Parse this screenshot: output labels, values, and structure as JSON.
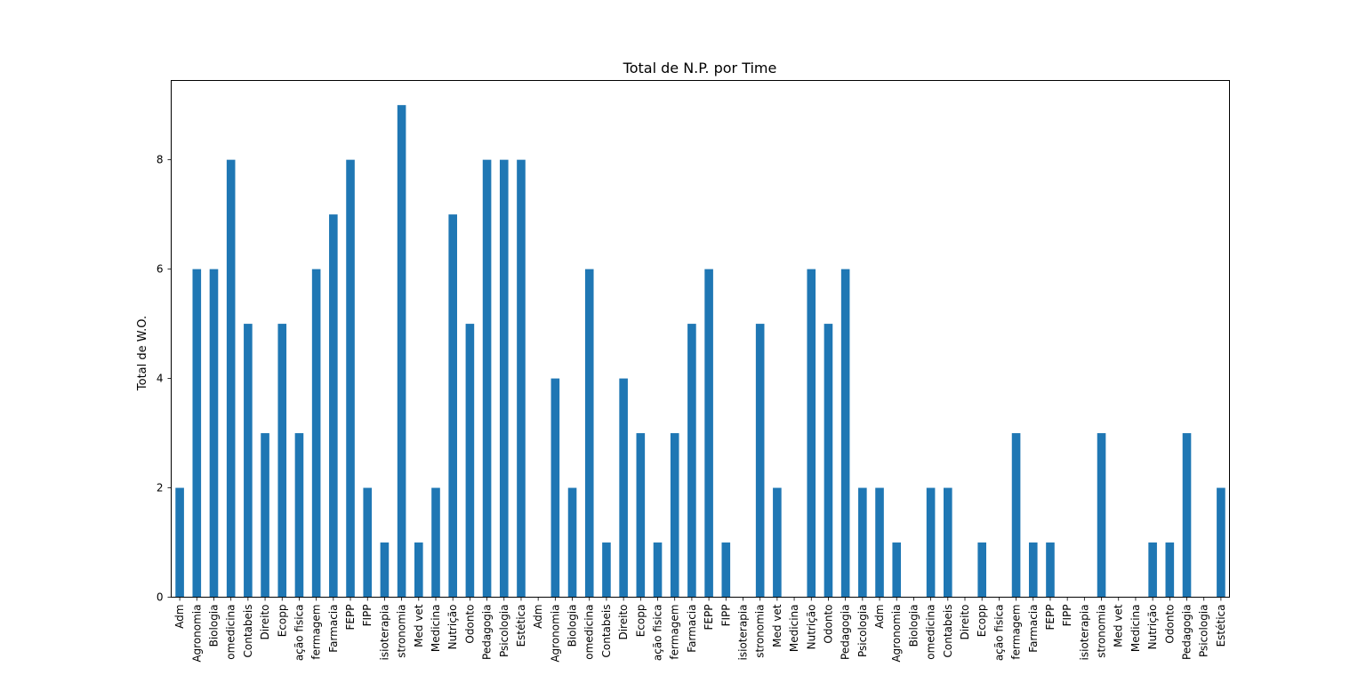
{
  "chart_data": {
    "type": "bar",
    "title": "Total de N.P. por Time",
    "xlabel": "",
    "ylabel": "Total de W.O.",
    "ylim": [
      0,
      9.45
    ],
    "yticks": [
      0,
      2,
      4,
      6,
      8
    ],
    "grid": false,
    "legend": "none",
    "bar_color": "#1f77b4",
    "categories": [
      "Adm",
      "Agronomia",
      "Biologia",
      "omedicina",
      "Contabeis",
      "Direito",
      "Ecopp",
      "ação fisica",
      "fermagem",
      "Farmacia",
      "FEPP",
      "FIPP",
      "isioterapia",
      "stronomia",
      "Med vet",
      "Medicina",
      "Nutrição",
      "Odonto",
      "Pedagogia",
      "Psicologia",
      "Estética",
      "Adm",
      "Agronomia",
      "Biologia",
      "omedicina",
      "Contabeis",
      "Direito",
      "Ecopp",
      "ação fisica",
      "fermagem",
      "Farmacia",
      "FEPP",
      "FIPP",
      "isioterapia",
      "stronomia",
      "Med vet",
      "Medicina",
      "Nutrição",
      "Odonto",
      "Pedagogia",
      "Psicologia",
      "Adm",
      "Agronomia",
      "Biologia",
      "omedicina",
      "Contabeis",
      "Direito",
      "Ecopp",
      "ação fisica",
      "fermagem",
      "Farmacia",
      "FEPP",
      "FIPP",
      "isioterapia",
      "stronomia",
      "Med vet",
      "Medicina",
      "Nutrição",
      "Odonto",
      "Pedagogia",
      "Psicologia",
      "Estética"
    ],
    "values": [
      2,
      6,
      6,
      8,
      5,
      3,
      5,
      3,
      6,
      7,
      8,
      2,
      1,
      9,
      1,
      2,
      7,
      5,
      8,
      8,
      8,
      0,
      4,
      2,
      6,
      1,
      4,
      3,
      1,
      3,
      5,
      6,
      1,
      0,
      5,
      2,
      0,
      6,
      5,
      6,
      2,
      2,
      1,
      0,
      2,
      2,
      0,
      1,
      0,
      3,
      1,
      1,
      0,
      0,
      3,
      0,
      0,
      1,
      1,
      3,
      0,
      2
    ]
  }
}
